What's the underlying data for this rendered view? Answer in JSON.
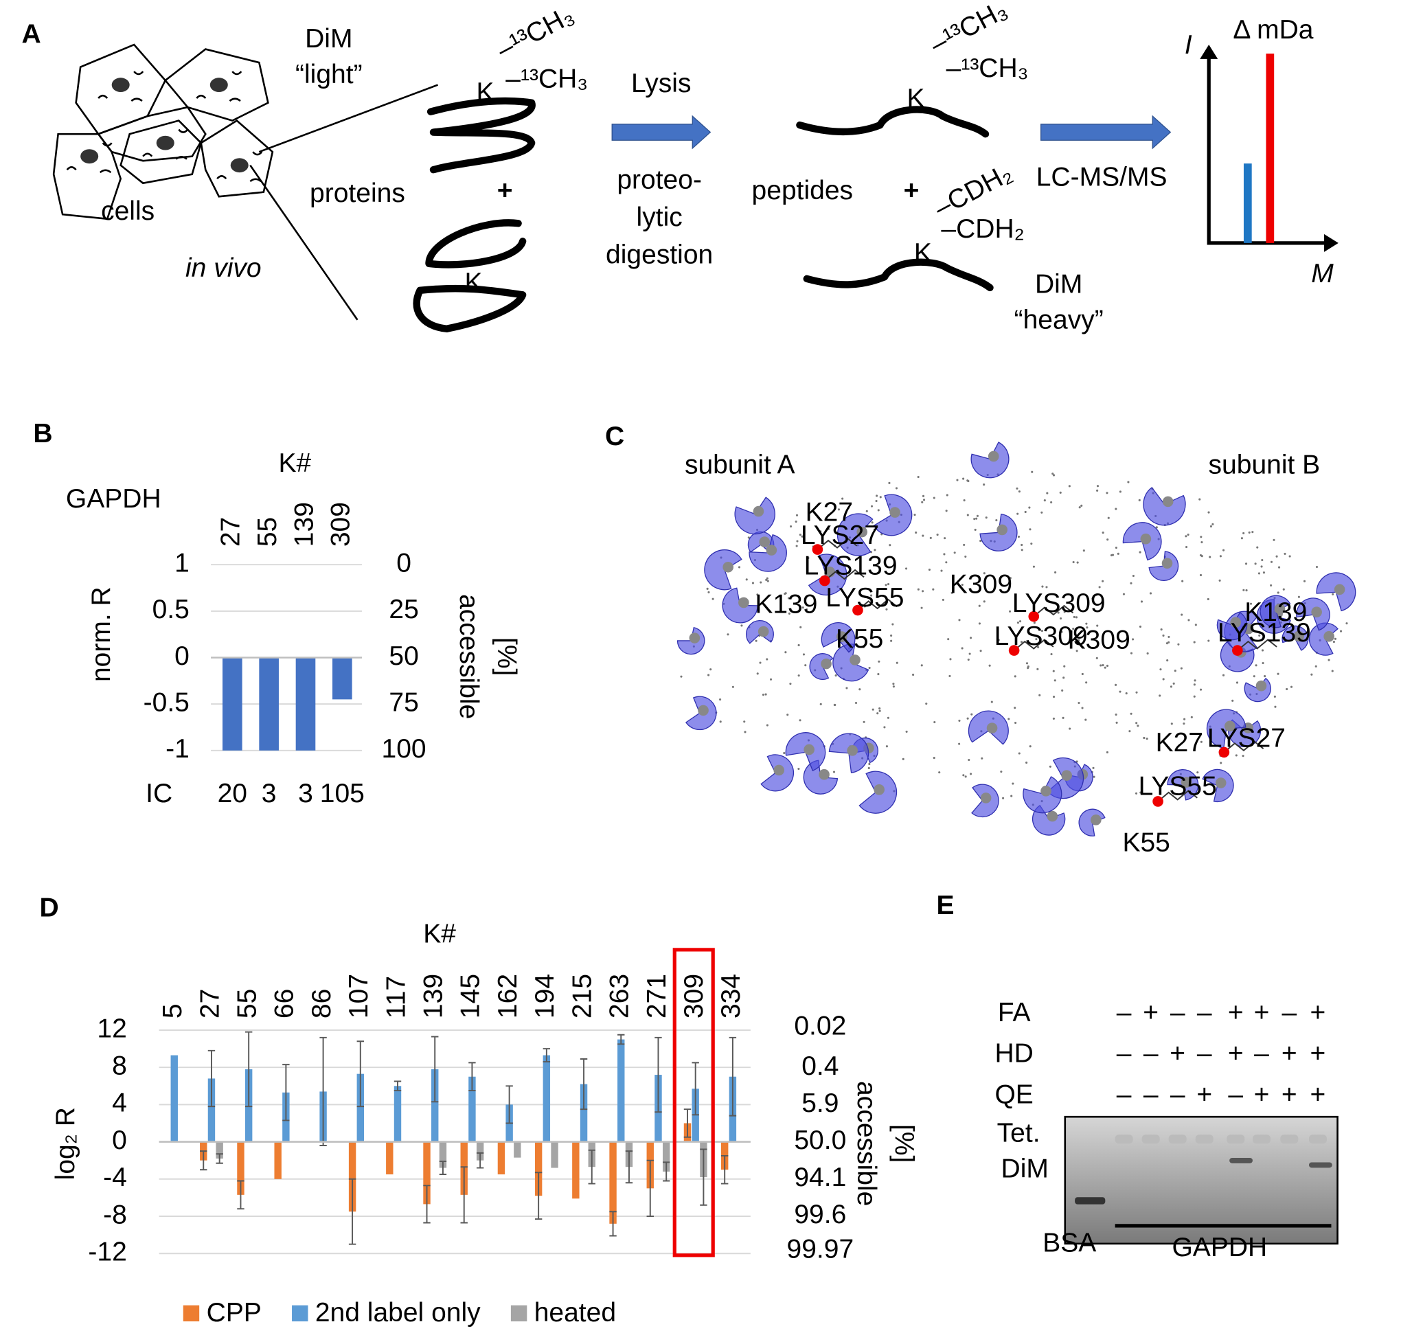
{
  "panel_a": {
    "label": "A",
    "dim_light": [
      "DiM",
      "“light”"
    ],
    "cells": "cells",
    "in_vivo": "in vivo",
    "proteins": "proteins",
    "protein_k": [
      "K",
      "K"
    ],
    "light_groups": [
      "–¹³CH₃",
      "–¹³CH₃"
    ],
    "lysis": "Lysis",
    "digestion": [
      "proteo-",
      "lytic",
      "digestion"
    ],
    "peptides": "peptides",
    "peptide_k": [
      "K",
      "K"
    ],
    "peptide_light_groups": [
      "–¹³CH₃",
      "–¹³CH₃"
    ],
    "heavy_groups": [
      "–CDH₂",
      "–CDH₂"
    ],
    "dim_heavy": [
      "DiM",
      "“heavy”"
    ],
    "lcms": "LC-MS/MS",
    "plus": [
      "+",
      "+"
    ],
    "spectrum": {
      "y_axis": "I",
      "x_axis": "M",
      "title": "Δ mDa"
    }
  },
  "chart_data": [
    {
      "type": "bar",
      "panel_label": "B",
      "title": "GAPDH",
      "xlabel": "K#",
      "categories": [
        "27",
        "55",
        "139",
        "309"
      ],
      "values": [
        -1,
        -1,
        -1,
        -0.45
      ],
      "color": "#4472c4",
      "ylabel": "norm. R",
      "ylim": [
        -1,
        1
      ],
      "yticks": [
        1,
        0.5,
        0,
        -0.5,
        -1
      ],
      "y2label": [
        "accessible",
        "[%]"
      ],
      "y2lim": [
        100,
        0
      ],
      "y2ticks": [
        0,
        25,
        50,
        75,
        100
      ],
      "row_label": "IC",
      "row_values": [
        20,
        3,
        3,
        105
      ],
      "grid": true
    },
    {
      "type": "grouped-bar",
      "panel_label": "D",
      "xlabel": "K#",
      "categories": [
        "5",
        "27",
        "55",
        "66",
        "86",
        "107",
        "117",
        "139",
        "145",
        "162",
        "194",
        "215",
        "263",
        "271",
        "309",
        "334"
      ],
      "series": [
        {
          "name": "CPP",
          "color": "#ed7d31",
          "values": [
            null,
            -2,
            -5.7,
            -4,
            null,
            -7.5,
            -3.5,
            -6.7,
            -5.7,
            -3.5,
            -5.8,
            -6.1,
            -8.8,
            -5,
            2,
            -3
          ],
          "errors": [
            null,
            1,
            1.5,
            null,
            null,
            3.5,
            null,
            2,
            3,
            null,
            2.5,
            null,
            1.3,
            3,
            1.5,
            1.5
          ]
        },
        {
          "name": "2nd label only",
          "color": "#5b9bd5",
          "values": [
            9.3,
            6.8,
            7.8,
            5.3,
            5.4,
            7.3,
            6,
            7.8,
            7,
            4,
            9.3,
            6.2,
            11,
            7.2,
            5.7,
            7
          ],
          "errors": [
            null,
            3,
            4,
            3,
            5.8,
            3.5,
            0.5,
            3.5,
            1.5,
            2,
            0.7,
            2.7,
            0.5,
            4,
            2.8,
            4.2
          ]
        },
        {
          "name": "heated",
          "color": "#a5a5a5",
          "values": [
            null,
            -1.8,
            null,
            null,
            null,
            null,
            null,
            -2.8,
            -2,
            -1.7,
            -2.8,
            -2.7,
            -2.7,
            -3.2,
            -3.8,
            null
          ],
          "errors": [
            null,
            0.5,
            null,
            null,
            null,
            null,
            null,
            0.7,
            0.8,
            null,
            null,
            1.8,
            1.7,
            1,
            3,
            null
          ]
        }
      ],
      "ylabel": "log₂ R",
      "ylim": [
        -12,
        12
      ],
      "yticks": [
        12,
        8,
        4,
        0,
        -4,
        -8,
        -12
      ],
      "y2label": [
        "accessible",
        "[%]"
      ],
      "y2scale": "logistic-log2",
      "y2ticks": [
        0.02,
        0.4,
        5.9,
        {
          "value": 50,
          "label": "50.0"
        },
        94.1,
        99.6,
        99.97
      ],
      "grid": true,
      "legend": "bottom"
    }
  ],
  "panel_c": {
    "label": "C",
    "subunits": [
      "subunit A",
      "subunit B"
    ],
    "sites": [
      "K27",
      "K139",
      "K55",
      "K309",
      "K309",
      "K139",
      "K27",
      "K55"
    ],
    "residues": [
      "LYS27",
      "LYS139",
      "LYS55",
      "LYS309",
      "LYS309",
      "LYS139",
      "LYS27",
      "LYS55"
    ]
  },
  "panel_e": {
    "label": "E",
    "rows": [
      {
        "name": "FA",
        "signs": [
          "–",
          "+",
          "–",
          "–",
          "+",
          "+",
          "–",
          "+"
        ]
      },
      {
        "name": "HD",
        "signs": [
          "–",
          "–",
          "+",
          "–",
          "+",
          "–",
          "+",
          "+"
        ]
      },
      {
        "name": "QE",
        "signs": [
          "–",
          "–",
          "–",
          "+",
          "–",
          "+",
          "+",
          "+"
        ]
      }
    ],
    "band_label": [
      "Tet.",
      "DiM"
    ],
    "lanes": [
      "BSA",
      "GAPDH"
    ]
  }
}
